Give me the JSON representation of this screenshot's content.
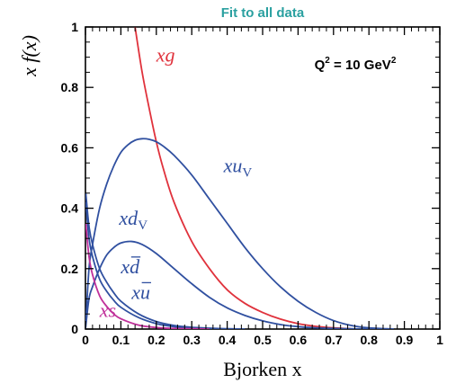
{
  "chart_data": {
    "type": "line",
    "title": "Fit to all data",
    "title_color": "#2aa0a0",
    "annotation": {
      "text_base": "Q",
      "sup1": "2",
      "text_mid": " = 10 GeV",
      "sup2": "2"
    },
    "xlabel": "Bjorken  x",
    "ylabel": "x f(x)",
    "xlim": [
      0,
      1
    ],
    "ylim": [
      0,
      1
    ],
    "x_ticks": [
      "0",
      "0.1",
      "0.2",
      "0.3",
      "0.4",
      "0.5",
      "0.6",
      "0.7",
      "0.8",
      "0.9",
      "1"
    ],
    "y_ticks": [
      "0",
      "0.2",
      "0.4",
      "0.6",
      "0.8",
      "1"
    ],
    "grid": false,
    "series": [
      {
        "name": "xg",
        "color": "#e0323c",
        "x": [
          0.14,
          0.16,
          0.18,
          0.2,
          0.22,
          0.25,
          0.3,
          0.35,
          0.4,
          0.45,
          0.5,
          0.55,
          0.6,
          0.65,
          0.7,
          0.75
        ],
        "y": [
          1.0,
          0.85,
          0.73,
          0.62,
          0.53,
          0.42,
          0.29,
          0.2,
          0.13,
          0.085,
          0.055,
          0.033,
          0.018,
          0.009,
          0.004,
          0.001
        ]
      },
      {
        "name": "xuV",
        "color": "#3050a0",
        "x": [
          0.0,
          0.01,
          0.02,
          0.04,
          0.06,
          0.08,
          0.1,
          0.12,
          0.14,
          0.16,
          0.18,
          0.2,
          0.22,
          0.25,
          0.3,
          0.35,
          0.4,
          0.45,
          0.5,
          0.55,
          0.6,
          0.65,
          0.7,
          0.75,
          0.8,
          0.85,
          0.87
        ],
        "y": [
          0.0,
          0.2,
          0.28,
          0.4,
          0.48,
          0.54,
          0.585,
          0.61,
          0.625,
          0.63,
          0.628,
          0.62,
          0.605,
          0.575,
          0.51,
          0.43,
          0.35,
          0.27,
          0.2,
          0.14,
          0.092,
          0.055,
          0.028,
          0.012,
          0.004,
          0.001,
          0.0
        ]
      },
      {
        "name": "xdV",
        "color": "#3050a0",
        "x": [
          0.0,
          0.01,
          0.02,
          0.04,
          0.06,
          0.08,
          0.1,
          0.13,
          0.16,
          0.2,
          0.25,
          0.3,
          0.35,
          0.4,
          0.45,
          0.5,
          0.55,
          0.6,
          0.65,
          0.7,
          0.75,
          0.8,
          0.82
        ],
        "y": [
          0.0,
          0.1,
          0.14,
          0.2,
          0.245,
          0.27,
          0.285,
          0.29,
          0.28,
          0.25,
          0.2,
          0.15,
          0.105,
          0.07,
          0.045,
          0.027,
          0.015,
          0.008,
          0.004,
          0.002,
          0.001,
          0.0,
          0.0
        ]
      },
      {
        "name": "xd̄",
        "color": "#3050a0",
        "x": [
          0.001,
          0.01,
          0.02,
          0.04,
          0.06,
          0.08,
          0.1,
          0.15,
          0.2,
          0.25,
          0.3,
          0.35,
          0.4,
          0.45
        ],
        "y": [
          0.45,
          0.34,
          0.28,
          0.2,
          0.155,
          0.12,
          0.092,
          0.05,
          0.025,
          0.012,
          0.006,
          0.003,
          0.001,
          0.0
        ]
      },
      {
        "name": "xū",
        "color": "#3050a0",
        "x": [
          0.001,
          0.01,
          0.02,
          0.04,
          0.06,
          0.08,
          0.1,
          0.15,
          0.2,
          0.25,
          0.3,
          0.35,
          0.4
        ],
        "y": [
          0.42,
          0.3,
          0.24,
          0.165,
          0.125,
          0.095,
          0.072,
          0.038,
          0.018,
          0.008,
          0.003,
          0.001,
          0.0
        ]
      },
      {
        "name": "xs",
        "color": "#c0309a",
        "x": [
          0.001,
          0.01,
          0.02,
          0.04,
          0.06,
          0.08,
          0.1,
          0.15,
          0.2,
          0.25,
          0.3,
          0.35
        ],
        "y": [
          0.35,
          0.24,
          0.18,
          0.11,
          0.075,
          0.05,
          0.034,
          0.013,
          0.005,
          0.002,
          0.001,
          0.0
        ]
      }
    ],
    "labels": [
      {
        "base": "xg",
        "sub": "",
        "bar": false,
        "color": "#e0323c",
        "x": 0.2,
        "y": 0.885
      },
      {
        "base": "xu",
        "sub": "V",
        "bar": false,
        "color": "#3050a0",
        "x": 0.39,
        "y": 0.52
      },
      {
        "base": "xd",
        "sub": "V",
        "bar": false,
        "color": "#3050a0",
        "x": 0.095,
        "y": 0.345
      },
      {
        "base": "xd",
        "sub": "",
        "bar": true,
        "color": "#3050a0",
        "x": 0.1,
        "y": 0.185
      },
      {
        "base": "xu",
        "sub": "",
        "bar": true,
        "color": "#3050a0",
        "x": 0.13,
        "y": 0.1
      },
      {
        "base": "xs",
        "sub": "",
        "bar": false,
        "color": "#c0309a",
        "x": 0.04,
        "y": 0.04
      }
    ]
  }
}
